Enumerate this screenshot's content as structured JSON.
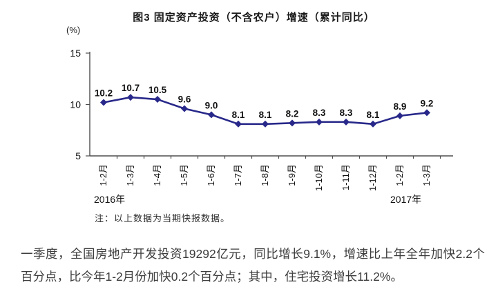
{
  "chart": {
    "title": "图3  固定资产投资（不含农户）增速（累计同比）",
    "unit_label": "(%)",
    "note": "注：以上数据为当期快报数据。"
  },
  "chart_data": {
    "type": "line",
    "title": "图3 固定资产投资（不含农户）增速（累计同比）",
    "categories": [
      "1-2月",
      "1-3月",
      "1-4月",
      "1-5月",
      "1-6月",
      "1-7月",
      "1-8月",
      "1-9月",
      "1-10月",
      "1-11月",
      "1-12月",
      "1-2月",
      "1-3月"
    ],
    "values": [
      10.2,
      10.7,
      10.5,
      9.6,
      9.0,
      8.1,
      8.1,
      8.2,
      8.3,
      8.3,
      8.1,
      8.9,
      9.2
    ],
    "value_label_decimals": 1,
    "ylabel": "(%)",
    "ylim": [
      5,
      15
    ],
    "yticks": [
      5,
      10,
      15
    ],
    "grid": false,
    "legend": "none",
    "marker": "diamond",
    "line_color": "#28288a",
    "axis_color": "#4d4d4d",
    "label_color": "#111111",
    "year_groups": [
      {
        "label": "2016年",
        "anchor_index": 0
      },
      {
        "label": "2017年",
        "anchor_index": 11
      }
    ]
  },
  "paragraph": {
    "text": "一季度，全国房地产开发投资19292亿元，同比增长9.1%，增速比上年全年加快2.2个百分点，比今年1-2月份加快0.2个百分点；其中，住宅投资增长11.2%。"
  }
}
